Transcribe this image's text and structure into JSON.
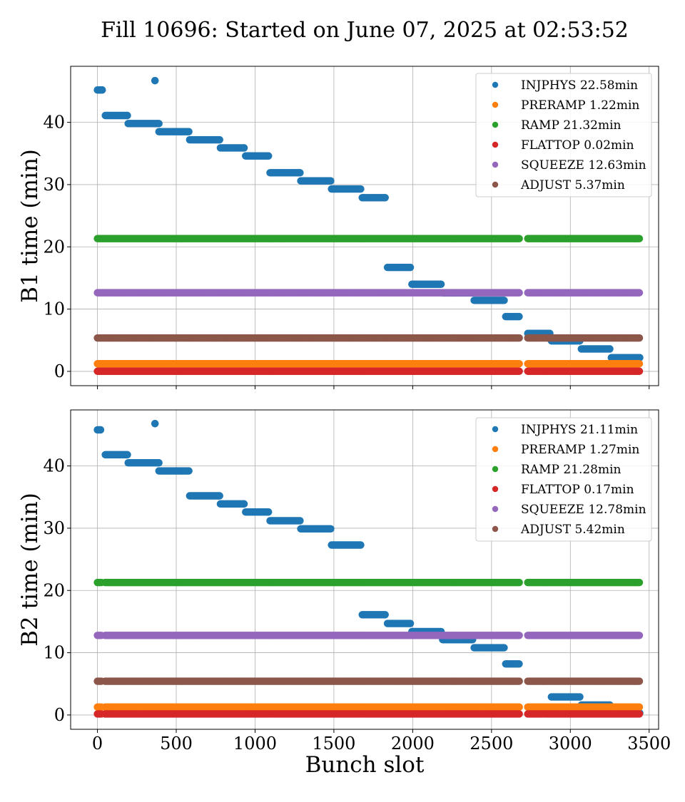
{
  "title": "Fill 10696: Started on June 07, 2025 at 02:53:52",
  "xlabel": "Bunch slot",
  "xlim": [
    -170,
    3560
  ],
  "xticks": [
    0,
    500,
    1000,
    1500,
    2000,
    2500,
    3000,
    3500
  ],
  "colors": {
    "INJPHYS": "#1f77b4",
    "PRERAMP": "#ff7f0e",
    "RAMP": "#2ca02c",
    "FLATTOP": "#d62728",
    "SQUEEZE": "#9467bd",
    "ADJUST": "#8c564b"
  },
  "chart_data": [
    {
      "type": "scatter",
      "ylabel": "B1 time (min)",
      "ylim": [
        -2.3,
        49
      ],
      "yticks": [
        0,
        10,
        20,
        30,
        40
      ],
      "grid": true,
      "legend_position": "top-right",
      "legend": [
        "INJPHYS 22.58min",
        "PRERAMP 1.22min",
        "RAMP 21.32min",
        "FLATTOP 0.02min",
        "SQUEEZE 12.63min",
        "ADJUST 5.37min"
      ],
      "series": [
        {
          "key": "INJPHYS",
          "segments": [
            {
              "x": [
                0,
                30
              ],
              "y": 45.2
            },
            {
              "x": [
                365,
                365
              ],
              "y": 46.7
            },
            {
              "x": [
                50,
                190
              ],
              "y": 41.1
            },
            {
              "x": [
                195,
                390
              ],
              "y": 39.8
            },
            {
              "x": [
                390,
                580
              ],
              "y": 38.5
            },
            {
              "x": [
                585,
                775
              ],
              "y": 37.2
            },
            {
              "x": [
                780,
                930
              ],
              "y": 35.9
            },
            {
              "x": [
                940,
                1085
              ],
              "y": 34.6
            },
            {
              "x": [
                1095,
                1285
              ],
              "y": 31.9
            },
            {
              "x": [
                1290,
                1480
              ],
              "y": 30.6
            },
            {
              "x": [
                1485,
                1670
              ],
              "y": 29.3
            },
            {
              "x": [
                1680,
                1825
              ],
              "y": 27.9
            },
            {
              "x": [
                1840,
                1985
              ],
              "y": 16.7
            },
            {
              "x": [
                1995,
                2180
              ],
              "y": 14.0
            },
            {
              "x": [
                2190,
                2380
              ],
              "y": 12.6
            },
            {
              "x": [
                2390,
                2580
              ],
              "y": 11.4
            },
            {
              "x": [
                2590,
                2675
              ],
              "y": 8.8
            },
            {
              "x": [
                2730,
                2870
              ],
              "y": 6.1
            },
            {
              "x": [
                2880,
                3060
              ],
              "y": 4.9
            },
            {
              "x": [
                3070,
                3250
              ],
              "y": 3.6
            },
            {
              "x": [
                3260,
                3440
              ],
              "y": 2.2
            }
          ]
        },
        {
          "key": "PRERAMP",
          "value": 1.22,
          "gaps": [
            [
              2680,
              2725
            ]
          ]
        },
        {
          "key": "RAMP",
          "value": 21.32,
          "gaps": [
            [
              2680,
              2725
            ]
          ]
        },
        {
          "key": "FLATTOP",
          "value": 0.02,
          "gaps": [
            [
              2680,
              2725
            ]
          ]
        },
        {
          "key": "SQUEEZE",
          "value": 12.63,
          "gaps": [
            [
              2680,
              2725
            ]
          ]
        },
        {
          "key": "ADJUST",
          "value": 5.37,
          "gaps": [
            [
              2680,
              2725
            ]
          ]
        }
      ]
    },
    {
      "type": "scatter",
      "ylabel": "B2 time (min)",
      "ylim": [
        -2.3,
        49
      ],
      "yticks": [
        0,
        10,
        20,
        30,
        40
      ],
      "grid": true,
      "legend_position": "top-right",
      "legend": [
        "INJPHYS 21.11min",
        "PRERAMP 1.27min",
        "RAMP 21.28min",
        "FLATTOP 0.17min",
        "SQUEEZE 12.78min",
        "ADJUST 5.42min"
      ],
      "series": [
        {
          "key": "INJPHYS",
          "segments": [
            {
              "x": [
                0,
                20
              ],
              "y": 45.8
            },
            {
              "x": [
                365,
                365
              ],
              "y": 46.8
            },
            {
              "x": [
                50,
                190
              ],
              "y": 41.8
            },
            {
              "x": [
                195,
                390
              ],
              "y": 40.5
            },
            {
              "x": [
                390,
                580
              ],
              "y": 39.2
            },
            {
              "x": [
                585,
                775
              ],
              "y": 35.2
            },
            {
              "x": [
                780,
                930
              ],
              "y": 33.9
            },
            {
              "x": [
                940,
                1085
              ],
              "y": 32.6
            },
            {
              "x": [
                1095,
                1285
              ],
              "y": 31.2
            },
            {
              "x": [
                1290,
                1480
              ],
              "y": 29.9
            },
            {
              "x": [
                1485,
                1670
              ],
              "y": 27.3
            },
            {
              "x": [
                1680,
                1825
              ],
              "y": 16.1
            },
            {
              "x": [
                1840,
                1985
              ],
              "y": 14.7
            },
            {
              "x": [
                1995,
                2180
              ],
              "y": 13.4
            },
            {
              "x": [
                2190,
                2380
              ],
              "y": 12.1
            },
            {
              "x": [
                2390,
                2580
              ],
              "y": 10.8
            },
            {
              "x": [
                2590,
                2675
              ],
              "y": 8.2
            },
            {
              "x": [
                2880,
                3060
              ],
              "y": 2.9
            },
            {
              "x": [
                3070,
                3250
              ],
              "y": 1.6
            },
            {
              "x": [
                3260,
                3440
              ],
              "y": 0.3
            }
          ]
        },
        {
          "key": "PRERAMP",
          "value": 1.27,
          "gaps": [
            [
              25,
              45
            ],
            [
              2680,
              2725
            ]
          ]
        },
        {
          "key": "RAMP",
          "value": 21.28,
          "gaps": [
            [
              25,
              45
            ],
            [
              2680,
              2725
            ]
          ]
        },
        {
          "key": "FLATTOP",
          "value": 0.17,
          "gaps": [
            [
              25,
              45
            ],
            [
              2680,
              2725
            ]
          ]
        },
        {
          "key": "SQUEEZE",
          "value": 12.78,
          "gaps": [
            [
              25,
              45
            ],
            [
              2680,
              2725
            ]
          ]
        },
        {
          "key": "ADJUST",
          "value": 5.42,
          "gaps": [
            [
              25,
              45
            ],
            [
              2680,
              2725
            ]
          ]
        }
      ]
    }
  ]
}
